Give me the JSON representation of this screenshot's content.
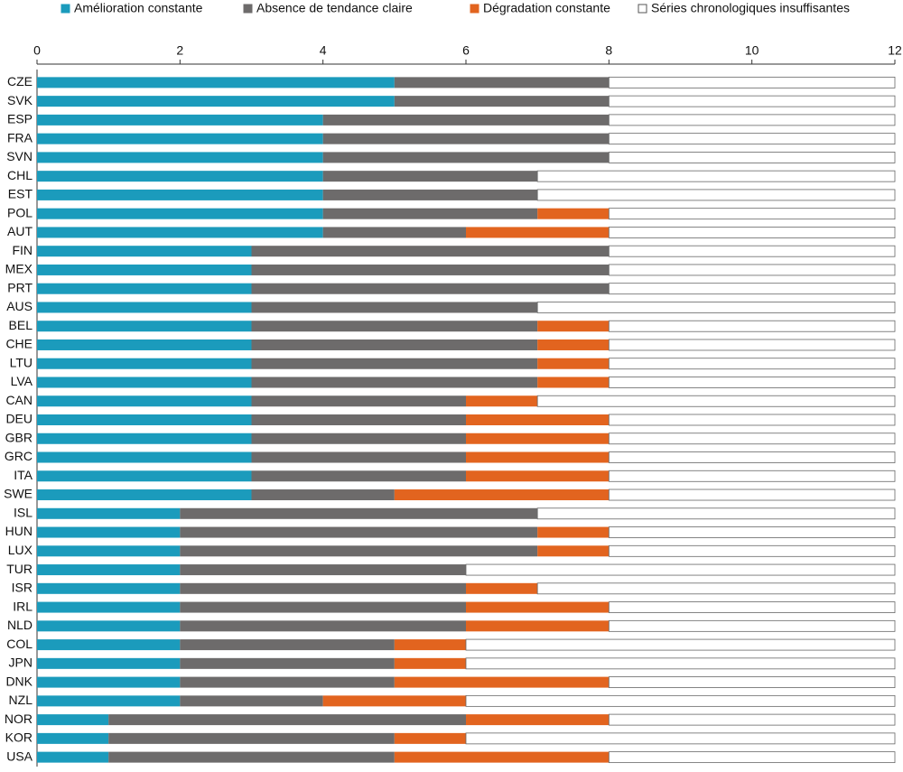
{
  "chart_data": {
    "type": "stacked_barh",
    "categories": [
      "CZE",
      "SVK",
      "ESP",
      "FRA",
      "SVN",
      "CHL",
      "EST",
      "POL",
      "AUT",
      "FIN",
      "MEX",
      "PRT",
      "AUS",
      "BEL",
      "CHE",
      "LTU",
      "LVA",
      "CAN",
      "DEU",
      "GBR",
      "GRC",
      "ITA",
      "SWE",
      "ISL",
      "HUN",
      "LUX",
      "TUR",
      "ISR",
      "IRL",
      "NLD",
      "COL",
      "JPN",
      "DNK",
      "NZL",
      "NOR",
      "KOR",
      "USA"
    ],
    "series": [
      {
        "name": "Amélioration constante",
        "color": "#1b9bbc",
        "values": [
          5,
          5,
          4,
          4,
          4,
          4,
          4,
          4,
          4,
          3,
          3,
          3,
          3,
          3,
          3,
          3,
          3,
          3,
          3,
          3,
          3,
          3,
          3,
          2,
          2,
          2,
          2,
          2,
          2,
          2,
          2,
          2,
          2,
          2,
          1,
          1,
          1
        ]
      },
      {
        "name": "Absence de tendance claire",
        "color": "#6d6b6b",
        "values": [
          3,
          3,
          4,
          4,
          4,
          3,
          3,
          3,
          2,
          5,
          5,
          5,
          4,
          4,
          4,
          4,
          4,
          3,
          3,
          3,
          3,
          3,
          2,
          5,
          5,
          5,
          4,
          4,
          4,
          4,
          3,
          3,
          3,
          2,
          5,
          4,
          4
        ]
      },
      {
        "name": "Dégradation constante",
        "color": "#e2641f",
        "values": [
          0,
          0,
          0,
          0,
          0,
          0,
          0,
          1,
          2,
          0,
          0,
          0,
          0,
          1,
          1,
          1,
          1,
          1,
          2,
          2,
          2,
          2,
          3,
          0,
          1,
          1,
          0,
          1,
          2,
          2,
          1,
          1,
          3,
          2,
          2,
          1,
          3
        ]
      },
      {
        "name": "Séries chronologiques insuffisantes",
        "color": "#ffffff",
        "values": [
          4,
          4,
          4,
          4,
          4,
          5,
          5,
          4,
          4,
          4,
          4,
          4,
          5,
          4,
          4,
          4,
          4,
          5,
          4,
          4,
          4,
          4,
          4,
          5,
          4,
          4,
          6,
          5,
          4,
          4,
          6,
          6,
          4,
          6,
          4,
          6,
          4
        ]
      }
    ],
    "xlim": [
      0,
      12
    ],
    "xticks": [
      0,
      2,
      4,
      6,
      8,
      10,
      12
    ],
    "legend": "top"
  }
}
